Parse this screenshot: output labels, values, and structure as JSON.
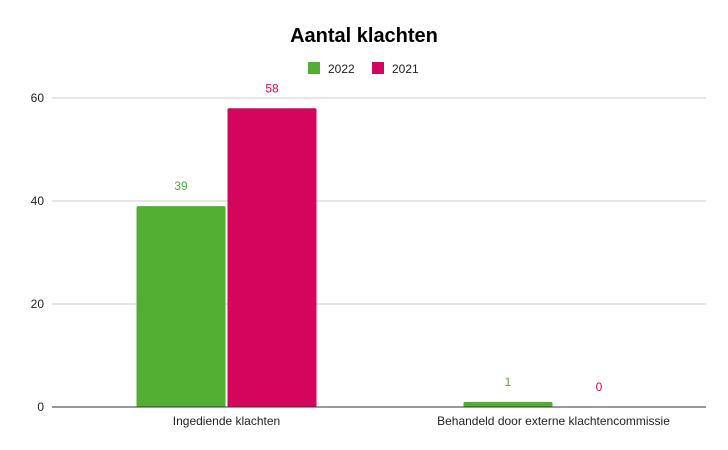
{
  "chart_data": {
    "type": "bar",
    "title": "Aantal klachten",
    "categories": [
      "Ingediende klachten",
      "Behandeld door externe klachtencommissie"
    ],
    "series": [
      {
        "name": "2022",
        "values": [
          39,
          1
        ],
        "color": "#52ad33"
      },
      {
        "name": "2021",
        "values": [
          58,
          0
        ],
        "color": "#d5055e"
      }
    ],
    "ylim": [
      0,
      60
    ],
    "yticks": [
      0,
      20,
      40,
      60
    ],
    "grid": true,
    "legend": "top-center",
    "data_labels": true
  }
}
